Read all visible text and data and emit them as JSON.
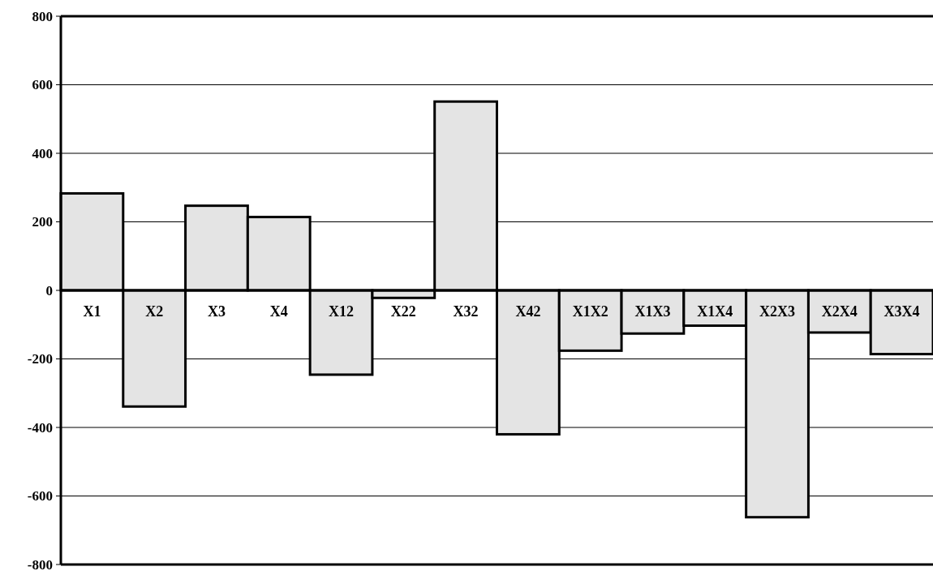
{
  "chart_data": {
    "type": "bar",
    "categories": [
      "X1",
      "X2",
      "X3",
      "X4",
      "X12",
      "X22",
      "X32",
      "X42",
      "X1X2",
      "X1X3",
      "X1X4",
      "X2X3",
      "X2X4",
      "X3X4"
    ],
    "values": [
      283,
      -339,
      247,
      214,
      -246,
      -22,
      551,
      -420,
      -176,
      -126,
      -103,
      -662,
      -123,
      -186
    ],
    "color": "#e4e4e4",
    "ylim": [
      -800,
      800
    ],
    "yticks": [
      -800,
      -600,
      -400,
      -200,
      0,
      200,
      400,
      600,
      800
    ],
    "grid": "y"
  }
}
